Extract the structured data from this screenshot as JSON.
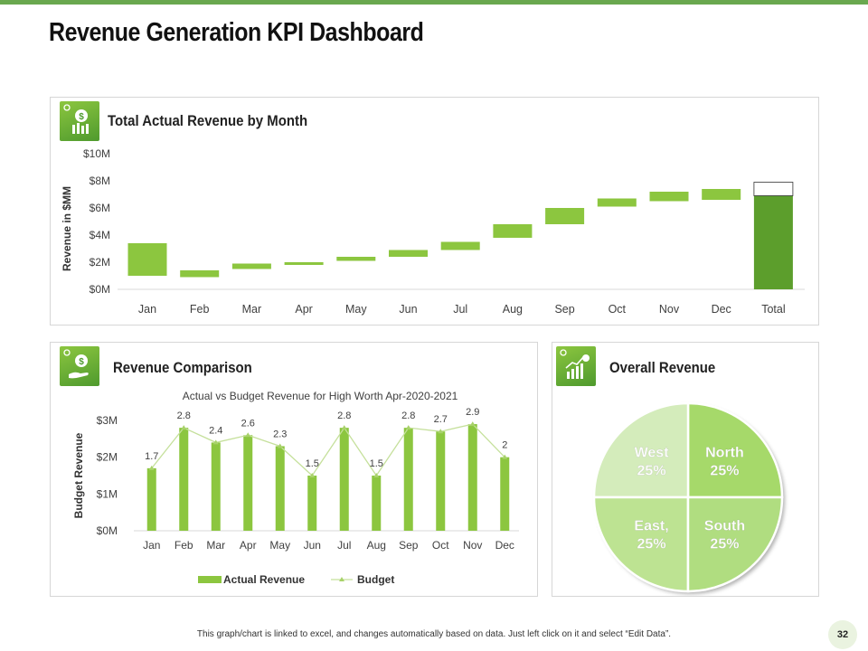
{
  "page": {
    "title": "Revenue Generation KPI Dashboard",
    "footnote": "This graph/chart is linked to excel,  and changes automatically based on data. Just left click on it and select “Edit Data”.",
    "page_number": "32"
  },
  "colors": {
    "accent": "#6aa84f",
    "bar_green": "#8cc63f",
    "total_green": "#5c9e2c",
    "pie": [
      "#a6d96a",
      "#d4ecbb",
      "#bde392",
      "#b0dd80"
    ]
  },
  "panels": {
    "monthly": {
      "title": "Total Actual Revenue by Month",
      "icon": "money-bag-chart-icon"
    },
    "comparison": {
      "title": "Revenue Comparison",
      "icon": "hand-money-icon"
    },
    "overall": {
      "title": "Overall Revenue",
      "icon": "growth-chart-icon"
    }
  },
  "chart_data": [
    {
      "id": "monthly",
      "type": "waterfall",
      "title": "Total Actual Revenue by Month",
      "ylabel": "Revenue in $MM",
      "ylim": [
        0,
        10
      ],
      "yticks": [
        0,
        2,
        4,
        6,
        8,
        10
      ],
      "ytick_labels": [
        "$0M",
        "$2M",
        "$4M",
        "$6M",
        "$8M",
        "$10M"
      ],
      "categories": [
        "Jan",
        "Feb",
        "Mar",
        "Apr",
        "May",
        "Jun",
        "Jul",
        "Aug",
        "Sep",
        "Oct",
        "Nov",
        "Dec",
        "Total"
      ],
      "segments": [
        {
          "start": 1.0,
          "end": 3.4
        },
        {
          "start": 0.9,
          "end": 1.4
        },
        {
          "start": 1.5,
          "end": 1.9
        },
        {
          "start": 1.8,
          "end": 2.0
        },
        {
          "start": 2.1,
          "end": 2.4
        },
        {
          "start": 2.4,
          "end": 2.9
        },
        {
          "start": 2.9,
          "end": 3.5
        },
        {
          "start": 3.8,
          "end": 4.8
        },
        {
          "start": 4.8,
          "end": 6.0
        },
        {
          "start": 6.1,
          "end": 6.7
        },
        {
          "start": 6.5,
          "end": 7.2
        },
        {
          "start": 6.6,
          "end": 7.4
        },
        {
          "start": 0.0,
          "end": 6.9,
          "cap_end": 7.9
        }
      ]
    },
    {
      "id": "comparison",
      "type": "bar+line",
      "title": "Actual vs Budget Revenue for High Worth Apr-2020-2021",
      "ylabel": "Budget Revenue",
      "ylim": [
        0,
        3
      ],
      "yticks": [
        0,
        1,
        2,
        3
      ],
      "ytick_labels": [
        "$0M",
        "$1M",
        "$2M",
        "$3M"
      ],
      "categories": [
        "Jan",
        "Feb",
        "Mar",
        "Apr",
        "May",
        "Jun",
        "Jul",
        "Aug",
        "Sep",
        "Oct",
        "Nov",
        "Dec"
      ],
      "series": [
        {
          "name": "Actual Revenue",
          "type": "bar",
          "values": [
            1.7,
            2.8,
            2.4,
            2.6,
            2.3,
            1.5,
            2.8,
            1.5,
            2.8,
            2.7,
            2.9,
            2
          ]
        },
        {
          "name": "Budget",
          "type": "line",
          "values": [
            1.7,
            2.8,
            2.4,
            2.6,
            2.3,
            1.5,
            2.8,
            1.5,
            2.8,
            2.7,
            2.9,
            2
          ]
        }
      ],
      "data_labels": [
        "1.7",
        "2.8",
        "2.4",
        "2.6",
        "2.3",
        "1.5",
        "2.8",
        "1.5",
        "2.8",
        "2.7",
        "2.9",
        "2"
      ],
      "legend": "bottom"
    },
    {
      "id": "overall",
      "type": "pie",
      "title": "Overall Revenue",
      "slices": [
        {
          "label": "North",
          "value": 25,
          "text": "25%"
        },
        {
          "label": "West",
          "value": 25,
          "text": "25%"
        },
        {
          "label": "East,",
          "value": 25,
          "text": "25%"
        },
        {
          "label": "South",
          "value": 25,
          "text": "25%"
        }
      ]
    }
  ]
}
